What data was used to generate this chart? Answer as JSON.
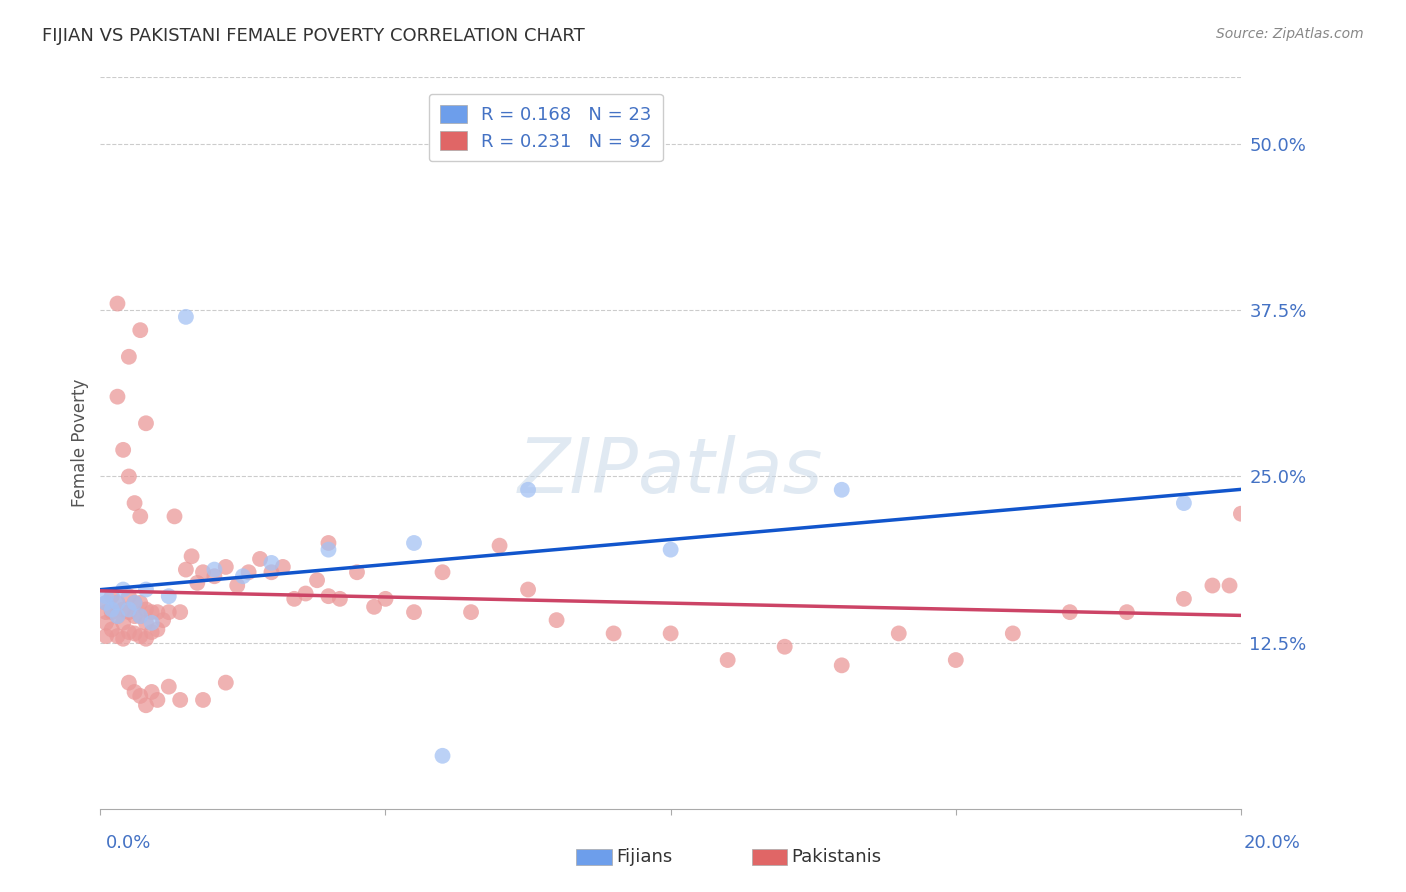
{
  "title": "FIJIAN VS PAKISTANI FEMALE POVERTY CORRELATION CHART",
  "source": "Source: ZipAtlas.com",
  "ylabel": "Female Poverty",
  "ytick_labels": [
    "12.5%",
    "25.0%",
    "37.5%",
    "50.0%"
  ],
  "ytick_values": [
    0.125,
    0.25,
    0.375,
    0.5
  ],
  "xlim": [
    0.0,
    0.2
  ],
  "ylim": [
    0.0,
    0.55
  ],
  "fijian_R": 0.168,
  "fijian_N": 23,
  "pakistani_R": 0.231,
  "pakistani_N": 92,
  "fijian_color": "#a4c2f4",
  "pakistani_color": "#ea9999",
  "fijian_line_color": "#1155cc",
  "pakistani_line_color": "#cc4466",
  "background_color": "#ffffff",
  "fijian_legend_color": "#6d9eeb",
  "pakistani_legend_color": "#e06666",
  "fijian_x": [
    0.001,
    0.001,
    0.002,
    0.003,
    0.003,
    0.004,
    0.005,
    0.006,
    0.007,
    0.008,
    0.009,
    0.012,
    0.015,
    0.02,
    0.025,
    0.03,
    0.04,
    0.055,
    0.06,
    0.075,
    0.1,
    0.13,
    0.19
  ],
  "fijian_y": [
    0.155,
    0.16,
    0.15,
    0.145,
    0.155,
    0.165,
    0.15,
    0.155,
    0.145,
    0.165,
    0.14,
    0.16,
    0.37,
    0.18,
    0.175,
    0.185,
    0.195,
    0.2,
    0.04,
    0.24,
    0.195,
    0.24,
    0.23
  ],
  "pakistani_x": [
    0.001,
    0.001,
    0.001,
    0.001,
    0.002,
    0.002,
    0.002,
    0.003,
    0.003,
    0.003,
    0.004,
    0.004,
    0.004,
    0.005,
    0.005,
    0.005,
    0.006,
    0.006,
    0.006,
    0.007,
    0.007,
    0.007,
    0.008,
    0.008,
    0.008,
    0.009,
    0.009,
    0.01,
    0.01,
    0.011,
    0.012,
    0.013,
    0.014,
    0.015,
    0.016,
    0.017,
    0.018,
    0.02,
    0.022,
    0.024,
    0.026,
    0.028,
    0.03,
    0.032,
    0.034,
    0.036,
    0.038,
    0.04,
    0.042,
    0.045,
    0.048,
    0.05,
    0.055,
    0.06,
    0.065,
    0.07,
    0.075,
    0.08,
    0.09,
    0.1,
    0.11,
    0.12,
    0.13,
    0.14,
    0.15,
    0.16,
    0.17,
    0.18,
    0.19,
    0.195,
    0.198,
    0.2,
    0.003,
    0.005,
    0.007,
    0.003,
    0.004,
    0.005,
    0.006,
    0.007,
    0.008,
    0.005,
    0.006,
    0.007,
    0.008,
    0.009,
    0.01,
    0.012,
    0.014,
    0.018,
    0.022,
    0.04
  ],
  "pakistani_y": [
    0.155,
    0.148,
    0.14,
    0.13,
    0.16,
    0.148,
    0.135,
    0.155,
    0.145,
    0.13,
    0.15,
    0.14,
    0.128,
    0.16,
    0.148,
    0.133,
    0.155,
    0.145,
    0.132,
    0.155,
    0.145,
    0.13,
    0.15,
    0.14,
    0.128,
    0.148,
    0.133,
    0.148,
    0.135,
    0.142,
    0.148,
    0.22,
    0.148,
    0.18,
    0.19,
    0.17,
    0.178,
    0.175,
    0.182,
    0.168,
    0.178,
    0.188,
    0.178,
    0.182,
    0.158,
    0.162,
    0.172,
    0.2,
    0.158,
    0.178,
    0.152,
    0.158,
    0.148,
    0.178,
    0.148,
    0.198,
    0.165,
    0.142,
    0.132,
    0.132,
    0.112,
    0.122,
    0.108,
    0.132,
    0.112,
    0.132,
    0.148,
    0.148,
    0.158,
    0.168,
    0.168,
    0.222,
    0.31,
    0.34,
    0.36,
    0.38,
    0.27,
    0.25,
    0.23,
    0.22,
    0.29,
    0.095,
    0.088,
    0.085,
    0.078,
    0.088,
    0.082,
    0.092,
    0.082,
    0.082,
    0.095,
    0.16
  ]
}
